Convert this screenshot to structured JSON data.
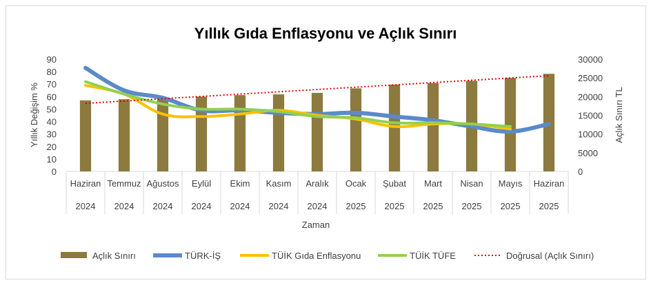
{
  "chart_data": {
    "type": "bar",
    "title": "Yıllık Gıda Enflasyonu ve Açlık Sınırı",
    "xlabel": "Zaman",
    "ylabel_left": "Yıllık Değişim %",
    "ylabel_right": "Açlık Sınırı TL",
    "ylim_left": [
      0,
      90
    ],
    "yticks_left": [
      "0",
      "10",
      "20",
      "30",
      "40",
      "50",
      "60",
      "70",
      "80",
      "90"
    ],
    "ylim_right": [
      0,
      30000
    ],
    "yticks_right": [
      "0",
      "5000",
      "10000",
      "15000",
      "20000",
      "25000",
      "30000"
    ],
    "categories": [
      {
        "month": "Haziran",
        "year": "2024"
      },
      {
        "month": "Temmuz",
        "year": "2024"
      },
      {
        "month": "Ağustos",
        "year": "2024"
      },
      {
        "month": "Eylül",
        "year": "2024"
      },
      {
        "month": "Ekim",
        "year": "2024"
      },
      {
        "month": "Kasım",
        "year": "2024"
      },
      {
        "month": "Aralık",
        "year": "2024"
      },
      {
        "month": "Ocak",
        "year": "2025"
      },
      {
        "month": "Şubat",
        "year": "2025"
      },
      {
        "month": "Mart",
        "year": "2025"
      },
      {
        "month": "Nisan",
        "year": "2025"
      },
      {
        "month": "Mayıs",
        "year": "2025"
      },
      {
        "month": "Haziran",
        "year": "2025"
      }
    ],
    "series": [
      {
        "name": "Açlık Sınırı",
        "type": "bar",
        "axis": "right",
        "color": "#8c7a3e",
        "values": [
          19000,
          19300,
          19700,
          20000,
          20400,
          20600,
          21000,
          22200,
          23200,
          23600,
          24200,
          25000,
          26100
        ]
      },
      {
        "name": "TÜRK-İŞ",
        "type": "line",
        "axis": "left",
        "color": "#5b8ac9",
        "values": [
          83,
          65,
          59,
          49,
          49,
          47,
          46,
          47,
          44,
          41,
          36,
          32,
          38
        ]
      },
      {
        "name": "TÜİK Gıda Enflasyonu",
        "type": "line",
        "axis": "left",
        "color": "#ffc000",
        "values": [
          69,
          62,
          46,
          44,
          46,
          49,
          45,
          42,
          36,
          38,
          38,
          34,
          null
        ]
      },
      {
        "name": "TÜİK TÜFE",
        "type": "line",
        "axis": "left",
        "color": "#92d050",
        "values": [
          72,
          62,
          54,
          50,
          50,
          48,
          44,
          43,
          39,
          39,
          38,
          36,
          null
        ]
      }
    ],
    "trendline": {
      "name": "Doğrusal (Açlık Sınırı)",
      "axis": "right",
      "color": "#e00000",
      "values": [
        18200,
        25600
      ]
    },
    "legend_position": "bottom",
    "grid": false
  }
}
